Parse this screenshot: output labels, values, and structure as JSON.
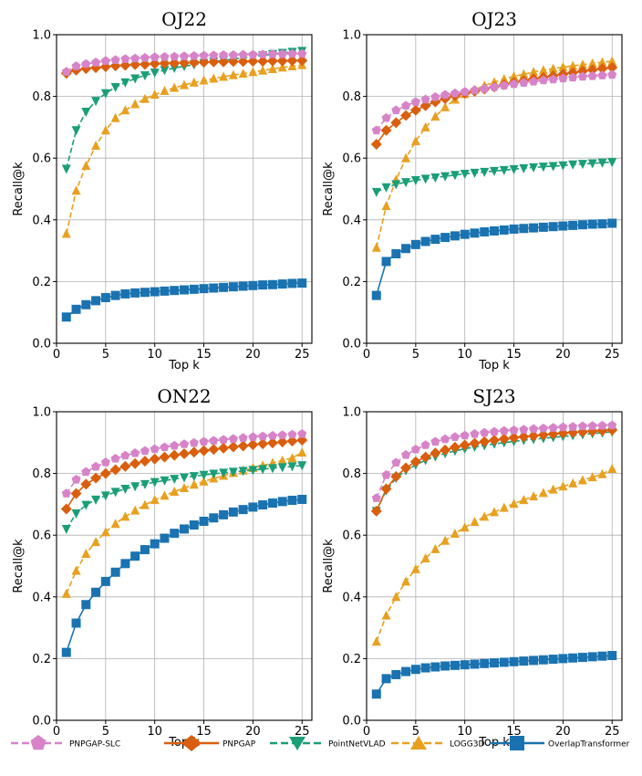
{
  "chart_data": [
    {
      "type": "line",
      "title": "OJ22",
      "xlabel": "Top k",
      "ylabel": "Recall@k",
      "xlim": [
        0,
        26
      ],
      "ylim": [
        0,
        1.0
      ],
      "xticks": [
        0,
        5,
        10,
        15,
        20,
        25
      ],
      "yticks": [
        0.0,
        0.2,
        0.4,
        0.6,
        0.8,
        1.0
      ],
      "grid": true,
      "x": [
        1,
        2,
        3,
        4,
        5,
        6,
        7,
        8,
        9,
        10,
        11,
        12,
        13,
        14,
        15,
        16,
        17,
        18,
        19,
        20,
        21,
        22,
        23,
        24,
        25
      ],
      "series": [
        {
          "name": "PNPGAP-SLC",
          "values": [
            0.88,
            0.898,
            0.905,
            0.91,
            0.915,
            0.918,
            0.921,
            0.923,
            0.925,
            0.927,
            0.928,
            0.929,
            0.93,
            0.931,
            0.932,
            0.933,
            0.934,
            0.934,
            0.935,
            0.935,
            0.936,
            0.937,
            0.937,
            0.938,
            0.938
          ]
        },
        {
          "name": "PNPGAP",
          "values": [
            0.875,
            0.885,
            0.89,
            0.893,
            0.896,
            0.899,
            0.901,
            0.903,
            0.904,
            0.906,
            0.907,
            0.908,
            0.909,
            0.91,
            0.911,
            0.912,
            0.912,
            0.913,
            0.913,
            0.914,
            0.914,
            0.915,
            0.915,
            0.916,
            0.916
          ]
        },
        {
          "name": "PointNetVLAD",
          "values": [
            0.565,
            0.69,
            0.75,
            0.785,
            0.81,
            0.83,
            0.845,
            0.858,
            0.868,
            0.877,
            0.885,
            0.892,
            0.898,
            0.903,
            0.908,
            0.913,
            0.917,
            0.921,
            0.925,
            0.929,
            0.933,
            0.937,
            0.941,
            0.944,
            0.947
          ]
        },
        {
          "name": "LOGG3D",
          "values": [
            0.355,
            0.495,
            0.575,
            0.64,
            0.69,
            0.73,
            0.755,
            0.775,
            0.792,
            0.806,
            0.818,
            0.828,
            0.837,
            0.845,
            0.852,
            0.858,
            0.864,
            0.869,
            0.874,
            0.879,
            0.884,
            0.889,
            0.894,
            0.898,
            0.902
          ]
        },
        {
          "name": "OverlapTransformer",
          "values": [
            0.085,
            0.11,
            0.125,
            0.138,
            0.148,
            0.155,
            0.16,
            0.163,
            0.165,
            0.167,
            0.169,
            0.171,
            0.173,
            0.175,
            0.177,
            0.179,
            0.181,
            0.183,
            0.185,
            0.187,
            0.189,
            0.19,
            0.192,
            0.194,
            0.195
          ]
        }
      ]
    },
    {
      "type": "line",
      "title": "OJ23",
      "xlabel": "Top k",
      "ylabel": "Recall@k",
      "xlim": [
        0,
        26
      ],
      "ylim": [
        0,
        1.0
      ],
      "xticks": [
        0,
        5,
        10,
        15,
        20,
        25
      ],
      "yticks": [
        0.0,
        0.2,
        0.4,
        0.6,
        0.8,
        1.0
      ],
      "grid": true,
      "x": [
        1,
        2,
        3,
        4,
        5,
        6,
        7,
        8,
        9,
        10,
        11,
        12,
        13,
        14,
        15,
        16,
        17,
        18,
        19,
        20,
        21,
        22,
        23,
        24,
        25
      ],
      "series": [
        {
          "name": "PNPGAP-SLC",
          "values": [
            0.69,
            0.73,
            0.755,
            0.77,
            0.782,
            0.79,
            0.798,
            0.805,
            0.81,
            0.815,
            0.82,
            0.825,
            0.83,
            0.835,
            0.84,
            0.844,
            0.848,
            0.852,
            0.855,
            0.858,
            0.861,
            0.864,
            0.866,
            0.868,
            0.87
          ]
        },
        {
          "name": "PNPGAP",
          "values": [
            0.645,
            0.69,
            0.715,
            0.738,
            0.755,
            0.77,
            0.782,
            0.793,
            0.802,
            0.81,
            0.817,
            0.824,
            0.831,
            0.838,
            0.845,
            0.851,
            0.857,
            0.862,
            0.867,
            0.872,
            0.877,
            0.882,
            0.886,
            0.89,
            0.894
          ]
        },
        {
          "name": "PointNetVLAD",
          "values": [
            0.49,
            0.505,
            0.515,
            0.522,
            0.528,
            0.533,
            0.537,
            0.541,
            0.545,
            0.549,
            0.552,
            0.555,
            0.558,
            0.561,
            0.564,
            0.567,
            0.57,
            0.572,
            0.574,
            0.576,
            0.579,
            0.581,
            0.583,
            0.585,
            0.587
          ]
        },
        {
          "name": "LOGG3D",
          "values": [
            0.31,
            0.445,
            0.53,
            0.6,
            0.655,
            0.7,
            0.735,
            0.765,
            0.79,
            0.808,
            0.822,
            0.835,
            0.846,
            0.856,
            0.865,
            0.872,
            0.879,
            0.885,
            0.89,
            0.895,
            0.899,
            0.903,
            0.907,
            0.911,
            0.914
          ]
        },
        {
          "name": "OverlapTransformer",
          "values": [
            0.155,
            0.265,
            0.29,
            0.307,
            0.32,
            0.33,
            0.337,
            0.343,
            0.348,
            0.353,
            0.357,
            0.361,
            0.364,
            0.367,
            0.37,
            0.372,
            0.374,
            0.376,
            0.378,
            0.38,
            0.382,
            0.384,
            0.386,
            0.387,
            0.389
          ]
        }
      ]
    },
    {
      "type": "line",
      "title": "ON22",
      "xlabel": "Top k",
      "ylabel": "Recall@k",
      "xlim": [
        0,
        26
      ],
      "ylim": [
        0,
        1.0
      ],
      "xticks": [
        0,
        5,
        10,
        15,
        20,
        25
      ],
      "yticks": [
        0.0,
        0.2,
        0.4,
        0.6,
        0.8,
        1.0
      ],
      "grid": true,
      "x": [
        1,
        2,
        3,
        4,
        5,
        6,
        7,
        8,
        9,
        10,
        11,
        12,
        13,
        14,
        15,
        16,
        17,
        18,
        19,
        20,
        21,
        22,
        23,
        24,
        25
      ],
      "series": [
        {
          "name": "PNPGAP-SLC",
          "values": [
            0.735,
            0.78,
            0.805,
            0.822,
            0.836,
            0.848,
            0.858,
            0.866,
            0.873,
            0.879,
            0.885,
            0.89,
            0.895,
            0.899,
            0.903,
            0.906,
            0.909,
            0.912,
            0.915,
            0.918,
            0.92,
            0.922,
            0.924,
            0.926,
            0.928
          ]
        },
        {
          "name": "PNPGAP",
          "values": [
            0.685,
            0.735,
            0.765,
            0.785,
            0.8,
            0.812,
            0.823,
            0.832,
            0.84,
            0.847,
            0.853,
            0.859,
            0.864,
            0.869,
            0.874,
            0.878,
            0.882,
            0.886,
            0.889,
            0.893,
            0.896,
            0.899,
            0.902,
            0.905,
            0.908
          ]
        },
        {
          "name": "PointNetVLAD",
          "values": [
            0.62,
            0.67,
            0.698,
            0.715,
            0.728,
            0.74,
            0.75,
            0.758,
            0.765,
            0.772,
            0.777,
            0.782,
            0.787,
            0.791,
            0.795,
            0.799,
            0.802,
            0.805,
            0.808,
            0.811,
            0.814,
            0.817,
            0.82,
            0.823,
            0.826
          ]
        },
        {
          "name": "LOGG3D",
          "values": [
            0.41,
            0.485,
            0.54,
            0.578,
            0.61,
            0.637,
            0.66,
            0.68,
            0.698,
            0.714,
            0.728,
            0.741,
            0.753,
            0.764,
            0.774,
            0.784,
            0.793,
            0.802,
            0.81,
            0.818,
            0.826,
            0.834,
            0.842,
            0.85,
            0.868
          ]
        },
        {
          "name": "OverlapTransformer",
          "values": [
            0.22,
            0.315,
            0.375,
            0.415,
            0.45,
            0.48,
            0.508,
            0.532,
            0.553,
            0.572,
            0.59,
            0.606,
            0.62,
            0.633,
            0.645,
            0.656,
            0.666,
            0.675,
            0.683,
            0.691,
            0.698,
            0.704,
            0.709,
            0.713,
            0.716
          ]
        }
      ]
    },
    {
      "type": "line",
      "title": "SJ23",
      "xlabel": "Top k",
      "ylabel": "Recall@k",
      "xlim": [
        0,
        26
      ],
      "ylim": [
        0,
        1.0
      ],
      "xticks": [
        0,
        5,
        10,
        15,
        20,
        25
      ],
      "yticks": [
        0.0,
        0.2,
        0.4,
        0.6,
        0.8,
        1.0
      ],
      "grid": true,
      "x": [
        1,
        2,
        3,
        4,
        5,
        6,
        7,
        8,
        9,
        10,
        11,
        12,
        13,
        14,
        15,
        16,
        17,
        18,
        19,
        20,
        21,
        22,
        23,
        24,
        25
      ],
      "series": [
        {
          "name": "PNPGAP-SLC",
          "values": [
            0.72,
            0.795,
            0.835,
            0.86,
            0.878,
            0.892,
            0.903,
            0.911,
            0.918,
            0.923,
            0.928,
            0.932,
            0.935,
            0.938,
            0.94,
            0.942,
            0.944,
            0.946,
            0.948,
            0.95,
            0.951,
            0.953,
            0.954,
            0.955,
            0.956
          ]
        },
        {
          "name": "PNPGAP",
          "values": [
            0.678,
            0.75,
            0.79,
            0.818,
            0.838,
            0.853,
            0.866,
            0.876,
            0.885,
            0.892,
            0.898,
            0.903,
            0.908,
            0.912,
            0.916,
            0.919,
            0.922,
            0.925,
            0.928,
            0.931,
            0.933,
            0.935,
            0.937,
            0.939,
            0.941
          ]
        },
        {
          "name": "PointNetVLAD",
          "values": [
            0.678,
            0.745,
            0.785,
            0.81,
            0.828,
            0.843,
            0.855,
            0.865,
            0.873,
            0.88,
            0.886,
            0.891,
            0.896,
            0.9,
            0.904,
            0.908,
            0.911,
            0.914,
            0.917,
            0.92,
            0.923,
            0.926,
            0.929,
            0.932,
            0.935
          ]
        },
        {
          "name": "LOGG3D",
          "values": [
            0.255,
            0.34,
            0.4,
            0.45,
            0.49,
            0.525,
            0.555,
            0.582,
            0.605,
            0.625,
            0.643,
            0.66,
            0.675,
            0.689,
            0.702,
            0.714,
            0.726,
            0.737,
            0.748,
            0.758,
            0.768,
            0.778,
            0.788,
            0.798,
            0.815
          ]
        },
        {
          "name": "OverlapTransformer",
          "values": [
            0.085,
            0.135,
            0.148,
            0.158,
            0.165,
            0.17,
            0.173,
            0.176,
            0.178,
            0.18,
            0.182,
            0.184,
            0.186,
            0.188,
            0.19,
            0.192,
            0.194,
            0.196,
            0.198,
            0.2,
            0.202,
            0.204,
            0.206,
            0.208,
            0.21
          ]
        }
      ]
    }
  ],
  "legend": {
    "placement": "bottom",
    "items": [
      {
        "label": "PNPGAP-SLC",
        "color": "#d783c8",
        "marker": "pentagon",
        "dash": true
      },
      {
        "label": "PNPGAP",
        "color": "#d95f0e",
        "marker": "diamond",
        "dash": false
      },
      {
        "label": "PointNetVLAD",
        "color": "#1a9e77",
        "marker": "triangle-down",
        "dash": true
      },
      {
        "label": "LOGG3D",
        "color": "#e8a020",
        "marker": "triangle-up",
        "dash": true
      },
      {
        "label": "OverlapTransformer",
        "color": "#1a73b0",
        "marker": "square",
        "dash": false
      }
    ]
  }
}
